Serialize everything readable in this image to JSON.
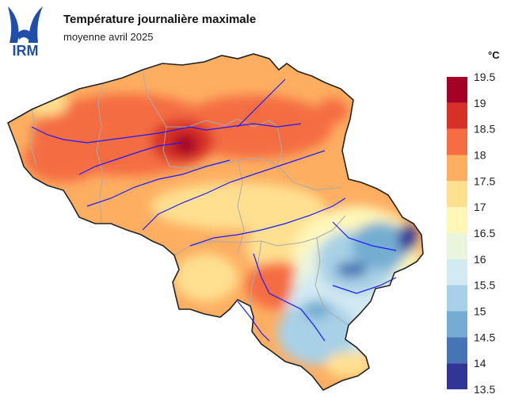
{
  "logo": {
    "text": "IRM",
    "color": "#1f4fa8"
  },
  "title": "Température journalière maximale",
  "subtitle": "moyenne avril 2025",
  "legend": {
    "unit": "°C",
    "ticks": [
      "19.5",
      "19",
      "18.5",
      "18",
      "17.5",
      "17",
      "16.5",
      "16",
      "15.5",
      "15",
      "14.5",
      "14",
      "13.5"
    ],
    "bands": [
      {
        "from": 19,
        "to": 19.5,
        "color": "#a50026"
      },
      {
        "from": 18.5,
        "to": 19,
        "color": "#d73027"
      },
      {
        "from": 18,
        "to": 18.5,
        "color": "#f46d43"
      },
      {
        "from": 17.5,
        "to": 18,
        "color": "#fdae61"
      },
      {
        "from": 17,
        "to": 17.5,
        "color": "#fee090"
      },
      {
        "from": 16.5,
        "to": 17,
        "color": "#fff6b8"
      },
      {
        "from": 16,
        "to": 16.5,
        "color": "#eaf5dc"
      },
      {
        "from": 15.5,
        "to": 16,
        "color": "#d2eaf2"
      },
      {
        "from": 15,
        "to": 15.5,
        "color": "#a8d0e6"
      },
      {
        "from": 14.5,
        "to": 15,
        "color": "#74add1"
      },
      {
        "from": 14,
        "to": 14.5,
        "color": "#4575b4"
      },
      {
        "from": 13.5,
        "to": 14,
        "color": "#313695"
      }
    ]
  },
  "map": {
    "country": "Belgium",
    "colors": {
      "border": "#222222",
      "river": "#1a1aff",
      "province": "#aaaaaa"
    }
  }
}
